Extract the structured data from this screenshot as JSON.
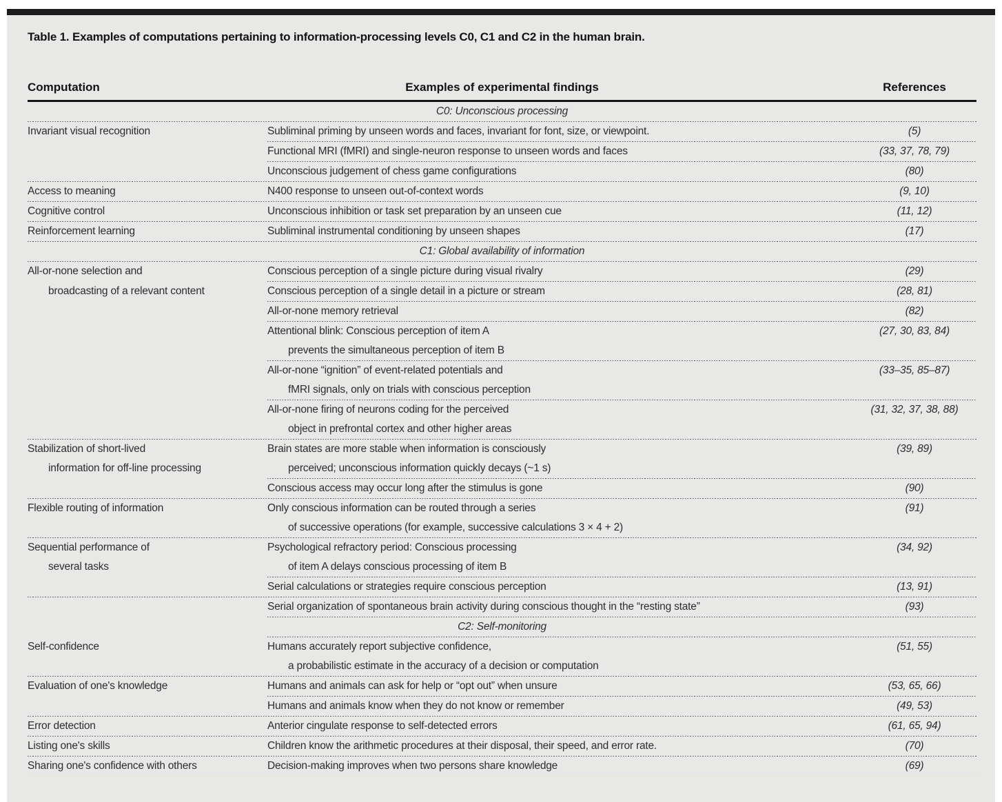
{
  "page": {
    "title": "Table 1. Examples of computations pertaining to information-processing levels C0, C1 and C2 in the human brain."
  },
  "table": {
    "columns": [
      "Computation",
      "Examples of experimental findings",
      "References"
    ],
    "sections": [
      {
        "label": "C0: Unconscious processing",
        "sep_after_label": "full",
        "rows": [
          {
            "comp": [
              {
                "t": "Invariant visual recognition"
              }
            ],
            "finding": [
              {
                "t": "Subliminal priming by unseen words and faces, invariant for font, size, or viewpoint."
              }
            ],
            "refs": "(5)",
            "sep": "partial"
          },
          {
            "comp": [],
            "finding": [
              {
                "t": "Functional MRI (fMRI) and single-neuron response to unseen words and faces"
              }
            ],
            "refs": "(33, 37, 78, 79)",
            "sep": "partial"
          },
          {
            "comp": [],
            "finding": [
              {
                "t": "Unconscious judgement of chess game configurations"
              }
            ],
            "refs": "(80)",
            "sep": "full"
          },
          {
            "comp": [
              {
                "t": "Access to meaning"
              }
            ],
            "finding": [
              {
                "t": "N400 response to unseen out-of-context words"
              }
            ],
            "refs": "(9, 10)",
            "sep": "full"
          },
          {
            "comp": [
              {
                "t": "Cognitive control"
              }
            ],
            "finding": [
              {
                "t": "Unconscious inhibition or task set preparation by an unseen cue"
              }
            ],
            "refs": "(11, 12)",
            "sep": "full"
          },
          {
            "comp": [
              {
                "t": "Reinforcement learning"
              }
            ],
            "finding": [
              {
                "t": "Subliminal instrumental conditioning by unseen shapes"
              }
            ],
            "refs": "(17)",
            "sep": "full"
          }
        ]
      },
      {
        "label": "C1: Global availability of information",
        "sep_after_label": "full",
        "rows": [
          {
            "comp": [
              {
                "t": "All-or-none selection and"
              }
            ],
            "finding": [
              {
                "t": "Conscious perception of a single picture during visual rivalry"
              }
            ],
            "refs": "(29)",
            "sep": "partial"
          },
          {
            "comp": [
              {
                "t": "broadcasting of a relevant content",
                "i": true
              }
            ],
            "finding": [
              {
                "t": "Conscious perception of a single detail in a picture or stream"
              }
            ],
            "refs": "(28, 81)",
            "sep": "partial"
          },
          {
            "comp": [],
            "finding": [
              {
                "t": "All-or-none memory retrieval"
              }
            ],
            "refs": "(82)",
            "sep": "partial"
          },
          {
            "comp": [],
            "finding": [
              {
                "t": "Attentional blink: Conscious perception of item A"
              },
              {
                "t": "prevents the simultaneous perception of item B",
                "i": true
              }
            ],
            "refs": "(27, 30, 83, 84)",
            "sep": "partial"
          },
          {
            "comp": [],
            "finding": [
              {
                "t": "All-or-none “ignition” of event-related potentials and"
              },
              {
                "t": "fMRI signals, only on trials with conscious perception",
                "i": true
              }
            ],
            "refs": "(33–35, 85–87)",
            "sep": "partial"
          },
          {
            "comp": [],
            "finding": [
              {
                "t": "All-or-none firing of neurons coding for the perceived"
              },
              {
                "t": "object in prefrontal cortex and other higher areas",
                "i": true
              }
            ],
            "refs": "(31, 32, 37, 38, 88)",
            "sep": "full"
          },
          {
            "comp": [
              {
                "t": "Stabilization of short-lived"
              },
              {
                "t": "information for off-line processing",
                "i": true
              }
            ],
            "finding": [
              {
                "t": "Brain states are more stable when information is consciously"
              },
              {
                "t": "perceived; unconscious information quickly decays (~1 s)",
                "i": true
              }
            ],
            "refs": "(39, 89)",
            "sep": "partial"
          },
          {
            "comp": [],
            "finding": [
              {
                "t": "Conscious access may occur long after the stimulus is gone"
              }
            ],
            "refs": "(90)",
            "sep": "full"
          },
          {
            "comp": [
              {
                "t": "Flexible routing of information"
              }
            ],
            "finding": [
              {
                "t": "Only conscious information can be routed through a series"
              },
              {
                "t": "of successive operations (for example, successive calculations 3 × 4 + 2)",
                "i": true
              }
            ],
            "refs": "(91)",
            "sep": "full"
          },
          {
            "comp": [
              {
                "t": "Sequential performance of"
              },
              {
                "t": "several tasks",
                "i": true
              }
            ],
            "finding": [
              {
                "t": "Psychological refractory period: Conscious processing"
              },
              {
                "t": "of item A delays conscious processing of item B",
                "i": true
              }
            ],
            "refs": "(34, 92)",
            "sep": "partial"
          },
          {
            "comp": [],
            "finding": [
              {
                "t": "Serial calculations or strategies require conscious perception"
              }
            ],
            "refs": "(13, 91)",
            "sep": "full"
          },
          {
            "comp": [],
            "finding": [
              {
                "t": "Serial organization of spontaneous brain activity during conscious thought in the “resting state”"
              }
            ],
            "refs": "(93)",
            "sep": "partial"
          }
        ]
      },
      {
        "label": "C2: Self-monitoring",
        "sep_after_label": "partial",
        "rows": [
          {
            "comp": [
              {
                "t": "Self-confidence"
              }
            ],
            "finding": [
              {
                "t": "Humans accurately report subjective confidence,"
              },
              {
                "t": "a probabilistic estimate in the accuracy of a decision or computation",
                "i": true
              }
            ],
            "refs": "(51, 55)",
            "sep": "full"
          },
          {
            "comp": [
              {
                "t": "Evaluation of one's knowledge"
              }
            ],
            "finding": [
              {
                "t": "Humans and animals can ask for help or “opt out” when unsure"
              }
            ],
            "refs": "(53, 65, 66)",
            "sep": "partial"
          },
          {
            "comp": [],
            "finding": [
              {
                "t": "Humans and animals know when they do not know or remember"
              }
            ],
            "refs": "(49, 53)",
            "sep": "full"
          },
          {
            "comp": [
              {
                "t": "Error detection"
              }
            ],
            "finding": [
              {
                "t": "Anterior cingulate response to self-detected errors"
              }
            ],
            "refs": "(61, 65, 94)",
            "sep": "full"
          },
          {
            "comp": [
              {
                "t": "Listing one's skills"
              }
            ],
            "finding": [
              {
                "t": "Children know the arithmetic procedures at their disposal, their speed, and error rate."
              }
            ],
            "refs": "(70)",
            "sep": "full"
          },
          {
            "comp": [
              {
                "t": "Sharing one's confidence with others"
              }
            ],
            "finding": [
              {
                "t": "Decision-making improves when two persons share knowledge"
              }
            ],
            "refs": "(69)",
            "sep": "end"
          }
        ]
      }
    ]
  },
  "colors": {
    "top_bar": "#1c1c1c",
    "panel_background": "#e8e8e6",
    "header_rule": "#141414",
    "dotted_separator": "#56565a",
    "end_separator": "#e9e1c4",
    "text": "#2d2d2f"
  }
}
